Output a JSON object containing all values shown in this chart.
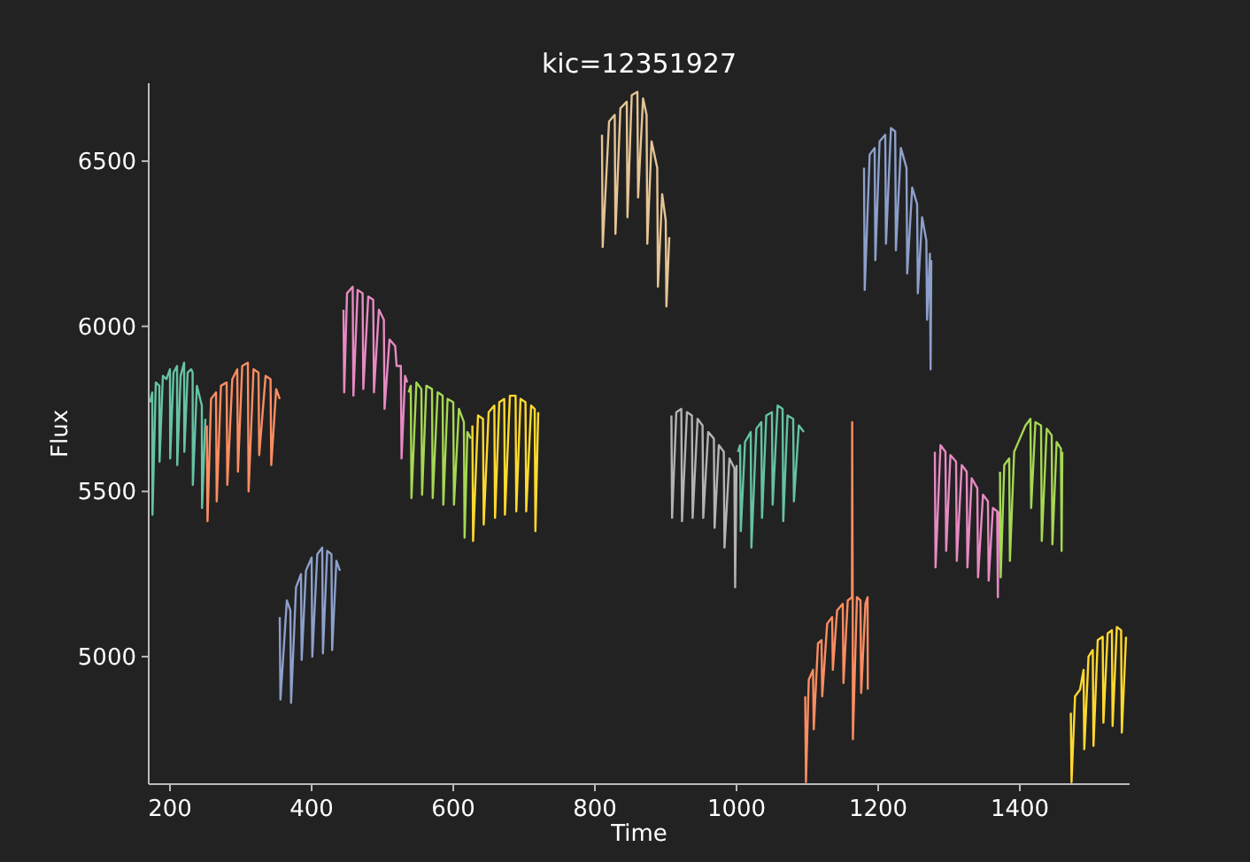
{
  "chart_data": {
    "type": "line",
    "title": "kic=12351927",
    "xlabel": "Time",
    "ylabel": "Flux",
    "xlim": [
      170,
      1555
    ],
    "ylim": [
      4614,
      6736
    ],
    "xticks": [
      200,
      400,
      600,
      800,
      1000,
      1200,
      1400
    ],
    "yticks": [
      5000,
      5500,
      6000,
      6500
    ],
    "series": [
      {
        "color": "#66c2a5",
        "x": [
          172,
          175,
          175.3,
          180,
          185,
          185.3,
          190,
          195,
          200,
          200.3,
          205,
          210,
          210.3,
          215,
          220,
          220.3,
          225,
          230,
          232,
          232.3,
          238,
          245,
          245.3,
          250
        ],
        "values": [
          5770,
          5800,
          5430,
          5830,
          5820,
          5590,
          5850,
          5840,
          5870,
          5600,
          5860,
          5880,
          5580,
          5850,
          5890,
          5620,
          5860,
          5870,
          5860,
          5520,
          5820,
          5760,
          5450,
          5720
        ]
      },
      {
        "color": "#fc8d62",
        "x": [
          252,
          253,
          258,
          265,
          266,
          272,
          280,
          281,
          288,
          295,
          296,
          302,
          310,
          311,
          318,
          325,
          326,
          335,
          342,
          343,
          350,
          355
        ],
        "values": [
          5700,
          5410,
          5780,
          5800,
          5470,
          5820,
          5830,
          5520,
          5840,
          5870,
          5560,
          5880,
          5890,
          5500,
          5870,
          5860,
          5610,
          5850,
          5840,
          5580,
          5810,
          5780
        ]
      },
      {
        "color": "#8da0cb",
        "x": [
          355,
          356,
          365,
          370,
          371,
          378,
          385,
          386,
          392,
          400,
          401,
          408,
          415,
          416,
          422,
          428,
          429,
          435,
          440
        ],
        "values": [
          5120,
          4870,
          5170,
          5140,
          4860,
          5210,
          5250,
          4990,
          5260,
          5300,
          5000,
          5310,
          5330,
          5010,
          5320,
          5310,
          5020,
          5290,
          5260
        ]
      },
      {
        "color": "#e78ac3",
        "x": [
          445,
          446,
          450,
          458,
          459,
          465,
          472,
          473,
          480,
          487,
          488,
          495,
          502,
          503,
          510,
          518,
          520,
          526,
          527,
          532,
          535
        ],
        "values": [
          6050,
          5800,
          6100,
          6120,
          5790,
          6110,
          6100,
          5810,
          6090,
          6080,
          5800,
          6050,
          6020,
          5750,
          5960,
          5940,
          5880,
          5880,
          5600,
          5850,
          5830
        ]
      },
      {
        "color": "#a6d854",
        "x": [
          537,
          540,
          541,
          548,
          555,
          556,
          562,
          570,
          571,
          578,
          585,
          586,
          592,
          600,
          601,
          608,
          615,
          616,
          620,
          625
        ],
        "values": [
          5800,
          5820,
          5480,
          5830,
          5810,
          5490,
          5820,
          5810,
          5480,
          5800,
          5790,
          5460,
          5780,
          5770,
          5460,
          5750,
          5710,
          5360,
          5680,
          5660
        ]
      },
      {
        "color": "#ffd92f",
        "x": [
          627,
          628,
          635,
          642,
          643,
          650,
          658,
          659,
          665,
          672,
          673,
          680,
          688,
          689,
          695,
          702,
          703,
          710,
          715,
          716,
          720
        ],
        "values": [
          5700,
          5350,
          5730,
          5720,
          5400,
          5740,
          5760,
          5420,
          5770,
          5780,
          5430,
          5790,
          5790,
          5440,
          5780,
          5770,
          5440,
          5760,
          5750,
          5380,
          5740
        ]
      },
      {
        "color": "#e5c494",
        "x": [
          810,
          811,
          820,
          828,
          829,
          836,
          845,
          846,
          852,
          860,
          861,
          868,
          873,
          874,
          880,
          888,
          889,
          895,
          900,
          901,
          905
        ],
        "values": [
          6580,
          6240,
          6620,
          6640,
          6280,
          6660,
          6680,
          6330,
          6700,
          6710,
          6390,
          6690,
          6640,
          6250,
          6560,
          6480,
          6120,
          6400,
          6320,
          6060,
          6270
        ]
      },
      {
        "color": "#b3b3b3",
        "x": [
          908,
          909,
          915,
          922,
          923,
          930,
          937,
          938,
          945,
          952,
          953,
          960,
          968,
          969,
          975,
          982,
          983,
          990,
          997,
          998,
          1000
        ],
        "values": [
          5730,
          5420,
          5740,
          5750,
          5410,
          5740,
          5730,
          5420,
          5720,
          5700,
          5420,
          5680,
          5660,
          5390,
          5640,
          5620,
          5330,
          5600,
          5570,
          5210,
          5580
        ]
      },
      {
        "color": "#66c2a5",
        "x": [
          1002,
          1005,
          1006,
          1012,
          1020,
          1021,
          1028,
          1035,
          1036,
          1042,
          1050,
          1051,
          1058,
          1065,
          1066,
          1072,
          1080,
          1081,
          1088,
          1095
        ],
        "values": [
          5620,
          5640,
          5380,
          5650,
          5680,
          5330,
          5690,
          5710,
          5420,
          5730,
          5740,
          5460,
          5760,
          5750,
          5410,
          5730,
          5720,
          5470,
          5700,
          5680
        ]
      },
      {
        "color": "#fc8d62",
        "x": [
          1097,
          1098,
          1102,
          1108,
          1109,
          1115,
          1120,
          1121,
          1128,
          1135,
          1136,
          1142,
          1150,
          1151,
          1157,
          1163,
          1163.3,
          1164,
          1164.3,
          1170,
          1175,
          1176,
          1182,
          1185,
          1185.3
        ],
        "values": [
          4880,
          4620,
          4930,
          4960,
          4780,
          5040,
          5050,
          4880,
          5100,
          5120,
          4960,
          5140,
          5160,
          4920,
          5170,
          5180,
          5710,
          5160,
          4750,
          5180,
          5170,
          4890,
          5160,
          5180,
          4900
        ]
      },
      {
        "color": "#8da0cb",
        "x": [
          1180,
          1181,
          1188,
          1195,
          1196,
          1202,
          1210,
          1211,
          1218,
          1224,
          1225,
          1232,
          1240,
          1241,
          1248,
          1255,
          1256,
          1262,
          1268,
          1269,
          1273,
          1274,
          1275
        ],
        "values": [
          6480,
          6110,
          6520,
          6540,
          6200,
          6560,
          6580,
          6250,
          6600,
          6590,
          6230,
          6540,
          6480,
          6160,
          6420,
          6370,
          6100,
          6330,
          6260,
          6020,
          6220,
          5870,
          6200
        ]
      },
      {
        "color": "#e78ac3",
        "x": [
          1280,
          1281,
          1288,
          1295,
          1296,
          1302,
          1310,
          1311,
          1318,
          1325,
          1326,
          1332,
          1340,
          1341,
          1348,
          1355,
          1356,
          1362,
          1368,
          1369,
          1370
        ],
        "values": [
          5620,
          5270,
          5640,
          5620,
          5320,
          5610,
          5590,
          5290,
          5580,
          5560,
          5270,
          5540,
          5510,
          5240,
          5490,
          5470,
          5230,
          5450,
          5440,
          5180,
          5440
        ]
      },
      {
        "color": "#a6d854",
        "x": [
          1372,
          1373,
          1378,
          1385,
          1386,
          1392,
          1400,
          1408,
          1415,
          1416,
          1422,
          1430,
          1431,
          1438,
          1445,
          1446,
          1452,
          1458,
          1459,
          1460
        ],
        "values": [
          5560,
          5240,
          5580,
          5600,
          5290,
          5620,
          5660,
          5700,
          5720,
          5450,
          5710,
          5700,
          5350,
          5690,
          5670,
          5340,
          5650,
          5630,
          5320,
          5620
        ]
      },
      {
        "color": "#ffd92f",
        "x": [
          1472,
          1473,
          1478,
          1485,
          1490,
          1491,
          1497,
          1503,
          1504,
          1510,
          1517,
          1518,
          1524,
          1530,
          1531,
          1537,
          1543,
          1544,
          1550
        ],
        "values": [
          4830,
          4620,
          4880,
          4900,
          4960,
          4720,
          5000,
          5020,
          4730,
          5050,
          5060,
          4800,
          5070,
          5080,
          4790,
          5090,
          5080,
          4770,
          5060
        ]
      }
    ]
  }
}
